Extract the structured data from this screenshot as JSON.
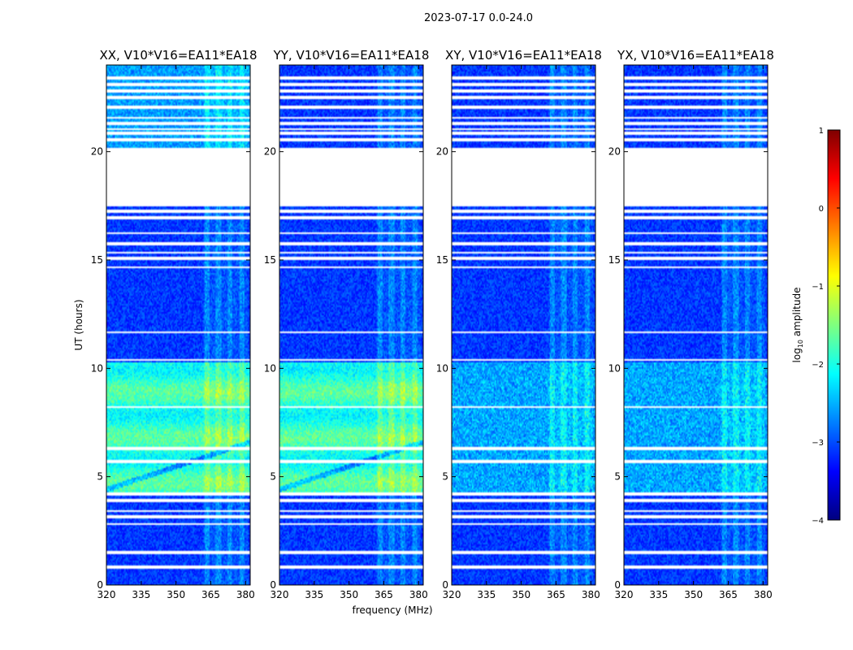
{
  "figure": {
    "suptitle": "2023-07-17 0.0-24.0"
  },
  "chart_data": {
    "type": "heatmap",
    "xlabel": "frequency (MHz)",
    "ylabel": "UT (hours)",
    "xlim": [
      320,
      382
    ],
    "ylim": [
      0,
      24
    ],
    "xticks": [
      320,
      335,
      350,
      365,
      380
    ],
    "yticks": [
      0,
      5,
      10,
      15,
      20
    ],
    "flagged_rows_ut": [
      [
        0.78,
        0.9
      ],
      [
        1.45,
        1.55
      ],
      [
        2.75,
        2.85
      ],
      [
        3.05,
        3.2
      ],
      [
        3.35,
        3.45
      ],
      [
        3.85,
        3.95
      ],
      [
        4.1,
        4.3
      ],
      [
        5.6,
        5.75
      ],
      [
        6.25,
        6.35
      ],
      [
        8.15,
        8.25
      ],
      [
        10.35,
        10.45
      ],
      [
        11.6,
        11.7
      ],
      [
        14.6,
        14.7
      ],
      [
        15.0,
        15.12
      ],
      [
        15.3,
        15.4
      ],
      [
        15.7,
        15.8
      ],
      [
        16.2,
        16.3
      ],
      [
        16.9,
        17.0
      ],
      [
        17.2,
        17.3
      ],
      [
        17.5,
        20.2
      ],
      [
        20.5,
        20.6
      ],
      [
        20.8,
        20.9
      ],
      [
        21.0,
        21.1
      ],
      [
        21.25,
        21.35
      ],
      [
        21.5,
        21.6
      ],
      [
        21.95,
        22.1
      ],
      [
        22.45,
        22.55
      ],
      [
        22.75,
        22.85
      ],
      [
        23.05,
        23.15
      ],
      [
        23.35,
        23.45
      ]
    ],
    "panels": [
      {
        "title": "XX, V10*V16=EA11*EA18",
        "profile": "parallel"
      },
      {
        "title": "YY, V10*V16=EA11*EA18",
        "profile": "parallel"
      },
      {
        "title": "XY, V10*V16=EA11*EA18",
        "profile": "cross"
      },
      {
        "title": "YX, V10*V16=EA11*EA18",
        "profile": "cross"
      }
    ],
    "colorbar": {
      "label": "log10 amplitude",
      "range": [
        -4,
        1
      ],
      "ticks": [
        1,
        0,
        -1,
        -2,
        -3,
        -4
      ],
      "tick_labels": [
        "1",
        "0",
        "−1",
        "−2",
        "−3",
        "−4"
      ],
      "colormap": [
        "#00007f",
        "#0000ff",
        "#007fff",
        "#00ffff",
        "#7fff7f",
        "#ffff00",
        "#ff7f00",
        "#ff0000",
        "#7f0000"
      ]
    }
  }
}
